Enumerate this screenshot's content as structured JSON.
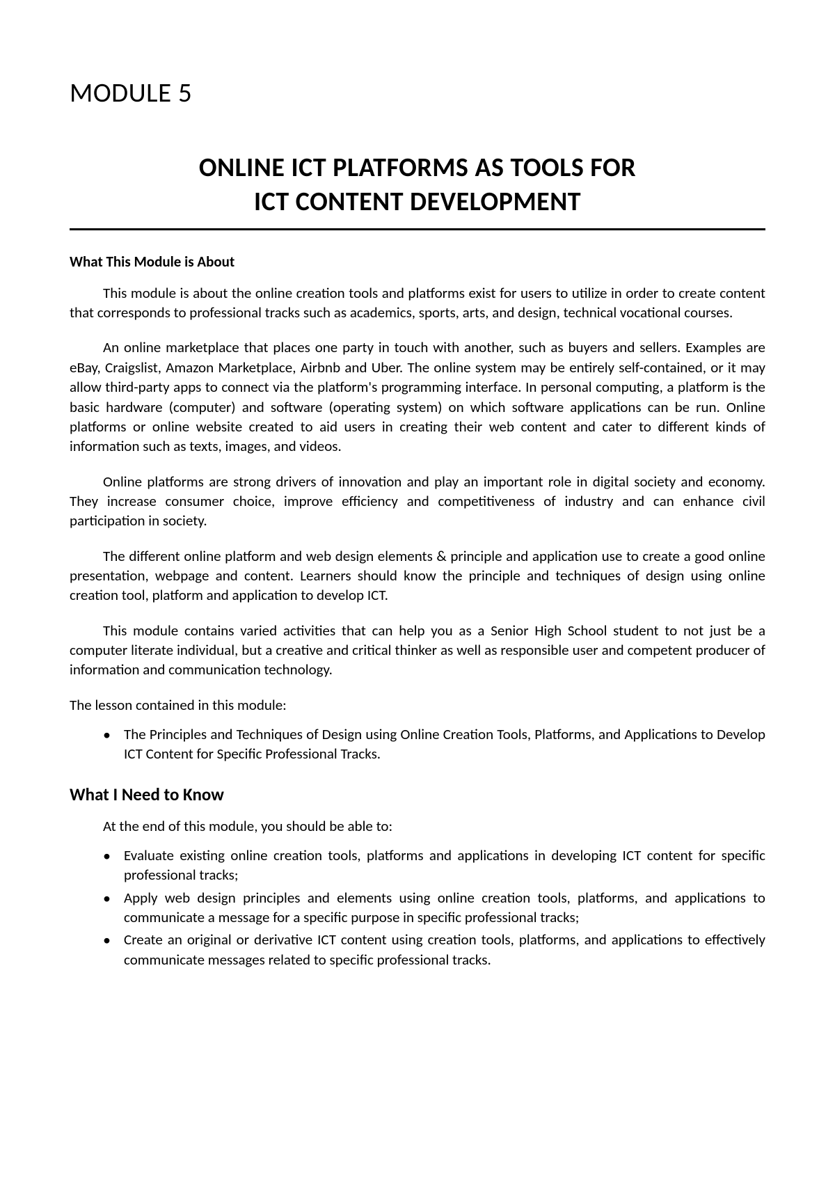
{
  "module_label": "MODULE 5",
  "title": {
    "line1": "ONLINE ICT PLATFORMS AS TOOLS FOR",
    "line2": "ICT CONTENT DEVELOPMENT"
  },
  "section_about": {
    "heading": "What This Module is About",
    "p1": "This module is about the online creation tools and platforms exist for users to utilize in order to create content that corresponds to professional tracks such as academics, sports, arts, and design, technical vocational courses.",
    "p2": "An online marketplace that places one party in touch with another, such as buyers and sellers. Examples are eBay, Craigslist, Amazon Marketplace, Airbnb and Uber.  The online system may be entirely self-contained, or it may allow third-party apps to connect via the platform's programming interface. In personal computing, a platform is the basic hardware (computer) and software (operating system) on which software applications can be run. Online platforms or online website created to aid users in creating their web content and cater to different kinds of information such as texts, images, and videos.",
    "p3": "Online platforms are strong drivers of innovation and play an important role in digital society and economy. They increase consumer choice, improve efficiency and competitiveness of industry and can enhance civil participation in society.",
    "p4": "The different online platform and web design elements & principle and application use to create a good online presentation, webpage and content. Learners should know the principle and techniques of design using online creation tool, platform and application to develop ICT.",
    "p5": "This module contains varied activities that can help you as a Senior High School student to not just be a computer literate individual, but a creative and critical thinker as well as responsible user and competent producer of information and communication technology.",
    "lesson_intro": "The lesson contained in this module:",
    "lesson_bullet": "The Principles and Techniques of Design using Online Creation Tools, Platforms, and Applications to Develop ICT Content for Specific Professional Tracks."
  },
  "section_know": {
    "heading": "What I Need to Know",
    "intro": "At the end of this module, you should be able to:",
    "bullets": {
      "b1": "Evaluate existing online creation tools, platforms and applications in developing ICT content for specific professional tracks;",
      "b2": "Apply web design principles and elements using online creation tools, platforms, and applications to communicate a message for a specific purpose in specific professional tracks;",
      "b3": "Create an original or derivative ICT content using creation tools, platforms, and applications to effectively communicate messages related to specific professional tracks."
    }
  }
}
